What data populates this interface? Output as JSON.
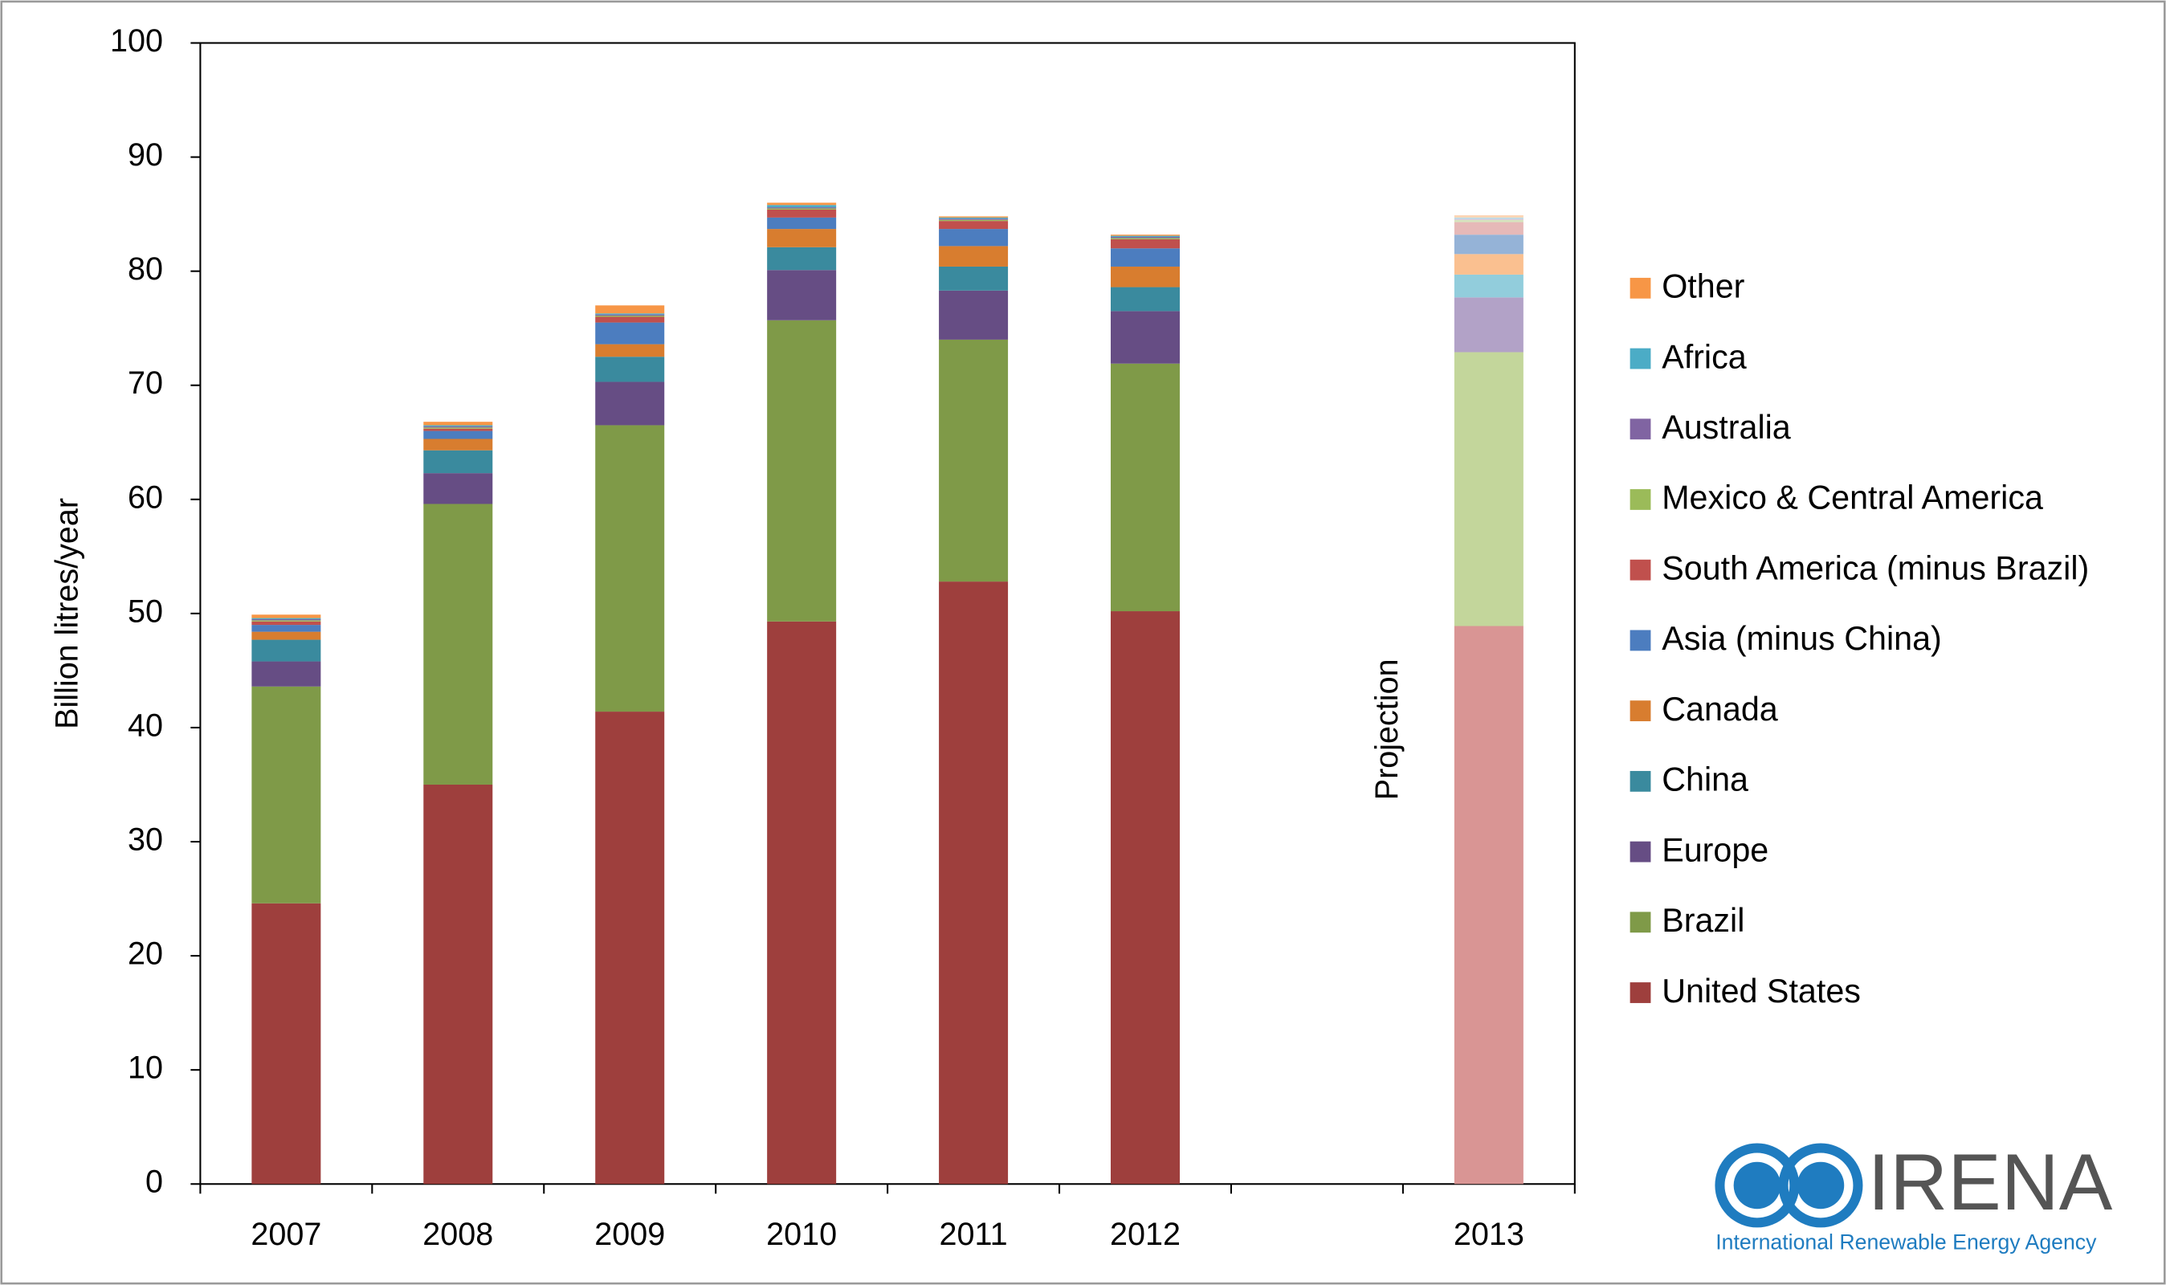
{
  "chart_data": {
    "type": "stacked_bar",
    "y_label": "Billion litres/year",
    "annotation": "Projection",
    "categories": [
      "2007",
      "2008",
      "2009",
      "2010",
      "2011",
      "2012",
      null,
      "2013"
    ],
    "ylim": [
      0,
      100
    ],
    "yticks": [
      0,
      10,
      20,
      30,
      40,
      50,
      60,
      70,
      80,
      90,
      100
    ],
    "grid": false,
    "legend_position": "right",
    "series": [
      {
        "name": "United States",
        "color": "#9e3f3d",
        "colors": [
          "#9e3f3d",
          "#9e3f3d",
          "#9e3f3d",
          "#9e3f3d",
          "#9e3f3d",
          "#9e3f3d",
          null,
          "#d99594"
        ],
        "values": [
          24.6,
          35.0,
          41.4,
          49.3,
          52.8,
          50.2,
          null,
          48.9
        ]
      },
      {
        "name": "Brazil",
        "color": "#7f9a48",
        "colors": [
          "#7f9a48",
          "#7f9a48",
          "#7f9a48",
          "#7f9a48",
          "#7f9a48",
          "#7f9a48",
          null,
          "#c3d69b"
        ],
        "values": [
          19.0,
          24.6,
          25.1,
          26.4,
          21.2,
          21.7,
          null,
          24.0
        ]
      },
      {
        "name": "Europe",
        "color": "#664d84",
        "colors": [
          "#664d84",
          "#664d84",
          "#664d84",
          "#664d84",
          "#664d84",
          "#664d84",
          null,
          "#b2a2c7"
        ],
        "values": [
          2.2,
          2.7,
          3.8,
          4.4,
          4.3,
          4.6,
          null,
          4.8
        ]
      },
      {
        "name": "China",
        "color": "#3a8a9e",
        "colors": [
          "#3a8a9e",
          "#3a8a9e",
          "#3a8a9e",
          "#3a8a9e",
          "#3a8a9e",
          "#3a8a9e",
          null,
          "#92cddc"
        ],
        "values": [
          1.9,
          2.0,
          2.2,
          2.0,
          2.1,
          2.1,
          null,
          2.0
        ]
      },
      {
        "name": "Canada",
        "color": "#d87d2f",
        "colors": [
          "#d87d2f",
          "#d87d2f",
          "#d87d2f",
          "#d87d2f",
          "#d87d2f",
          "#d87d2f",
          null,
          "#fac090"
        ],
        "values": [
          0.7,
          1.0,
          1.1,
          1.6,
          1.8,
          1.8,
          null,
          1.8
        ]
      },
      {
        "name": "Asia (minus China)",
        "color": "#4c7dbf",
        "colors": [
          "#4c7dbf",
          "#4c7dbf",
          "#4c7dbf",
          "#4c7dbf",
          "#4c7dbf",
          "#4c7dbf",
          null,
          "#95b3d7"
        ],
        "values": [
          0.6,
          0.7,
          1.9,
          1.0,
          1.5,
          1.6,
          null,
          1.7
        ]
      },
      {
        "name": "South America (minus Brazil)",
        "color": "#c0504d",
        "colors": [
          "#c0504d",
          "#c0504d",
          "#c0504d",
          "#c0504d",
          "#c0504d",
          "#c0504d",
          null,
          "#e6b9b8"
        ],
        "values": [
          0.3,
          0.2,
          0.5,
          0.7,
          0.7,
          0.8,
          null,
          1.1
        ]
      },
      {
        "name": "Mexico & Central America",
        "color": "#9bbb59",
        "colors": [
          "#9bbb59",
          "#9bbb59",
          "#9bbb59",
          "#9bbb59",
          "#9bbb59",
          "#9bbb59",
          null,
          "#d7e4bd"
        ],
        "values": [
          0.1,
          0.1,
          0.1,
          0.1,
          0.1,
          0.1,
          null,
          0.2
        ]
      },
      {
        "name": "Australia",
        "color": "#8064a2",
        "colors": [
          "#8064a2",
          "#8064a2",
          "#8064a2",
          "#8064a2",
          "#8064a2",
          "#8064a2",
          null,
          "#ccc1da"
        ],
        "values": [
          0.1,
          0.1,
          0.1,
          0.1,
          0.1,
          0.1,
          null,
          0.1
        ]
      },
      {
        "name": "Africa",
        "color": "#4bacc6",
        "colors": [
          "#4bacc6",
          "#4bacc6",
          "#4bacc6",
          "#4bacc6",
          "#4bacc6",
          "#4bacc6",
          null,
          "#b7dee8"
        ],
        "values": [
          0.1,
          0.1,
          0.1,
          0.2,
          0.1,
          0.1,
          null,
          0.1
        ]
      },
      {
        "name": "Other",
        "color": "#f79646",
        "colors": [
          "#f79646",
          "#f79646",
          "#f79646",
          "#f79646",
          "#f79646",
          "#f79646",
          null,
          "#fcd5b4"
        ],
        "values": [
          0.3,
          0.3,
          0.7,
          0.2,
          0.1,
          0.1,
          null,
          0.2
        ]
      }
    ]
  },
  "logo": {
    "name": "IRENA",
    "subtitle": "International Renewable Energy Agency"
  }
}
